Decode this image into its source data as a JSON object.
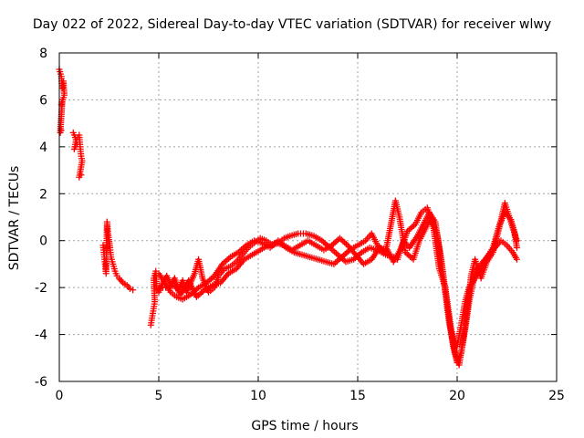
{
  "chart_data": {
    "type": "scatter",
    "title": "Day 022 of 2022, Sidereal Day-to-day VTEC variation (SDTVAR) for receiver wlwy",
    "xlabel": "GPS time / hours",
    "ylabel": "SDTVAR / TECUs",
    "xlim": [
      0,
      25
    ],
    "ylim": [
      -6,
      8
    ],
    "xticks": [
      0,
      5,
      10,
      15,
      20,
      25
    ],
    "yticks": [
      -6,
      -4,
      -2,
      0,
      2,
      4,
      6,
      8
    ],
    "grid": true,
    "marker": "+",
    "color": "#ff0000",
    "segments": [
      [
        [
          0.0,
          7.3
        ],
        [
          0.1,
          7.0
        ],
        [
          0.15,
          6.5
        ],
        [
          0.2,
          6.8
        ],
        [
          0.25,
          6.2
        ],
        [
          0.1,
          5.8
        ],
        [
          0.15,
          6.0
        ],
        [
          0.05,
          4.6
        ],
        [
          0.1,
          4.7
        ]
      ],
      [
        [
          0.7,
          4.6
        ],
        [
          0.8,
          4.4
        ],
        [
          0.9,
          4.1
        ],
        [
          0.75,
          3.9
        ],
        [
          0.85,
          4.3
        ],
        [
          1.0,
          4.5
        ],
        [
          1.05,
          4.0
        ],
        [
          1.1,
          3.6
        ],
        [
          1.15,
          3.4
        ],
        [
          1.0,
          2.7
        ],
        [
          1.1,
          2.8
        ]
      ],
      [
        [
          2.2,
          -0.2
        ],
        [
          2.25,
          -0.6
        ],
        [
          2.3,
          -1.0
        ],
        [
          2.35,
          -1.4
        ],
        [
          2.4,
          0.8
        ],
        [
          2.45,
          0.3
        ],
        [
          2.55,
          -0.3
        ],
        [
          2.6,
          -0.7
        ],
        [
          2.7,
          -1.0
        ],
        [
          2.8,
          -1.3
        ],
        [
          2.9,
          -1.5
        ],
        [
          3.0,
          -1.6
        ],
        [
          3.2,
          -1.8
        ],
        [
          3.4,
          -1.9
        ],
        [
          3.55,
          -2.05
        ],
        [
          3.7,
          -2.1
        ]
      ],
      [
        [
          4.6,
          -3.6
        ],
        [
          4.7,
          -3.1
        ],
        [
          4.8,
          -2.6
        ],
        [
          4.75,
          -1.6
        ],
        [
          4.85,
          -1.3
        ],
        [
          4.9,
          -2.0
        ],
        [
          5.0,
          -2.2
        ],
        [
          5.2,
          -1.8
        ],
        [
          5.4,
          -1.5
        ],
        [
          5.6,
          -1.9
        ],
        [
          5.8,
          -1.6
        ],
        [
          6.0,
          -2.1
        ],
        [
          6.2,
          -1.7
        ],
        [
          6.4,
          -2.2
        ],
        [
          6.6,
          -1.8
        ],
        [
          6.8,
          -1.4
        ],
        [
          7.0,
          -0.8
        ],
        [
          7.2,
          -1.6
        ],
        [
          7.5,
          -2.2
        ],
        [
          7.8,
          -2.0
        ],
        [
          8.0,
          -1.5
        ],
        [
          8.3,
          -1.2
        ],
        [
          8.6,
          -1.1
        ],
        [
          8.9,
          -0.9
        ],
        [
          9.2,
          -0.6
        ],
        [
          9.5,
          -0.3
        ],
        [
          9.8,
          -0.1
        ],
        [
          10.1,
          0.1
        ],
        [
          10.4,
          0.0
        ],
        [
          10.7,
          -0.2
        ],
        [
          11.0,
          -0.1
        ],
        [
          11.3,
          0.1
        ],
        [
          11.6,
          0.2
        ],
        [
          12.0,
          0.3
        ],
        [
          12.4,
          0.3
        ],
        [
          12.8,
          0.2
        ],
        [
          13.2,
          0.0
        ],
        [
          13.6,
          -0.3
        ],
        [
          14.0,
          -0.6
        ],
        [
          14.4,
          -0.9
        ],
        [
          14.8,
          -0.8
        ],
        [
          15.2,
          -0.5
        ],
        [
          15.6,
          -0.3
        ],
        [
          16.0,
          -0.4
        ],
        [
          16.4,
          -0.6
        ],
        [
          16.8,
          -0.7
        ],
        [
          17.0,
          -0.8
        ],
        [
          17.3,
          0.0
        ],
        [
          17.6,
          -0.3
        ],
        [
          18.0,
          0.2
        ],
        [
          18.3,
          0.7
        ],
        [
          18.6,
          1.2
        ],
        [
          18.9,
          0.8
        ],
        [
          19.2,
          -0.8
        ],
        [
          19.5,
          -2.8
        ],
        [
          19.8,
          -4.5
        ],
        [
          20.0,
          -5.2
        ],
        [
          20.2,
          -4.8
        ],
        [
          20.4,
          -3.8
        ],
        [
          20.6,
          -2.6
        ],
        [
          20.8,
          -1.8
        ],
        [
          21.0,
          -1.2
        ],
        [
          21.3,
          -0.9
        ],
        [
          21.6,
          -0.6
        ],
        [
          21.9,
          -0.3
        ],
        [
          22.2,
          0.0
        ],
        [
          22.5,
          -0.2
        ],
        [
          22.8,
          -0.5
        ],
        [
          23.0,
          -0.8
        ]
      ],
      [
        [
          5.0,
          -1.4
        ],
        [
          5.3,
          -1.8
        ],
        [
          5.6,
          -2.2
        ],
        [
          5.9,
          -2.4
        ],
        [
          6.2,
          -2.5
        ],
        [
          6.6,
          -2.3
        ],
        [
          7.0,
          -2.0
        ],
        [
          7.4,
          -1.8
        ],
        [
          7.8,
          -1.5
        ],
        [
          8.2,
          -1.0
        ],
        [
          8.6,
          -0.7
        ],
        [
          9.0,
          -0.5
        ],
        [
          9.4,
          -0.2
        ],
        [
          9.8,
          0.0
        ],
        [
          10.2,
          -0.1
        ],
        [
          10.6,
          -0.3
        ],
        [
          11.0,
          0.0
        ],
        [
          11.4,
          -0.3
        ],
        [
          11.8,
          -0.5
        ],
        [
          12.2,
          -0.6
        ],
        [
          12.6,
          -0.7
        ],
        [
          13.0,
          -0.8
        ],
        [
          13.4,
          -0.9
        ],
        [
          13.8,
          -1.0
        ],
        [
          14.2,
          -0.7
        ],
        [
          14.6,
          -0.4
        ],
        [
          15.0,
          -0.2
        ],
        [
          15.4,
          0.0
        ],
        [
          15.7,
          0.3
        ],
        [
          16.0,
          -0.2
        ],
        [
          16.4,
          -0.5
        ],
        [
          16.9,
          1.7
        ],
        [
          17.1,
          1.0
        ],
        [
          17.4,
          -0.5
        ],
        [
          17.8,
          -0.8
        ],
        [
          18.1,
          0.0
        ],
        [
          18.4,
          0.5
        ],
        [
          18.7,
          1.0
        ],
        [
          19.0,
          0.2
        ],
        [
          19.3,
          -1.5
        ],
        [
          19.6,
          -3.5
        ],
        [
          19.9,
          -4.8
        ],
        [
          20.1,
          -5.3
        ],
        [
          20.3,
          -4.2
        ],
        [
          20.5,
          -3.0
        ],
        [
          20.7,
          -1.5
        ],
        [
          20.9,
          -0.8
        ],
        [
          21.2,
          -1.6
        ],
        [
          21.5,
          -0.9
        ],
        [
          21.8,
          -0.5
        ],
        [
          22.1,
          0.5
        ],
        [
          22.4,
          1.6
        ],
        [
          22.7,
          0.8
        ],
        [
          23.0,
          0.0
        ]
      ],
      [
        [
          5.2,
          -2.0
        ],
        [
          5.5,
          -2.0
        ],
        [
          5.8,
          -1.9
        ],
        [
          6.1,
          -2.3
        ],
        [
          6.5,
          -1.7
        ],
        [
          6.9,
          -2.4
        ],
        [
          7.3,
          -2.1
        ],
        [
          7.7,
          -1.9
        ],
        [
          8.1,
          -1.8
        ],
        [
          8.5,
          -1.4
        ],
        [
          8.9,
          -1.2
        ],
        [
          9.3,
          -0.8
        ],
        [
          9.7,
          -0.6
        ],
        [
          10.1,
          -0.4
        ],
        [
          10.5,
          -0.2
        ],
        [
          10.9,
          -0.1
        ],
        [
          11.3,
          -0.2
        ],
        [
          11.7,
          -0.4
        ],
        [
          12.1,
          -0.2
        ],
        [
          12.5,
          0.0
        ],
        [
          12.9,
          -0.2
        ],
        [
          13.3,
          -0.4
        ],
        [
          13.7,
          -0.2
        ],
        [
          14.1,
          0.1
        ],
        [
          14.5,
          -0.2
        ],
        [
          14.9,
          -0.6
        ],
        [
          15.3,
          -1.0
        ],
        [
          15.7,
          -0.8
        ],
        [
          16.1,
          -0.3
        ],
        [
          16.5,
          -0.4
        ],
        [
          16.8,
          -0.9
        ],
        [
          17.2,
          -0.3
        ],
        [
          17.5,
          0.4
        ],
        [
          17.9,
          0.7
        ],
        [
          18.2,
          1.2
        ],
        [
          18.5,
          1.4
        ],
        [
          18.8,
          0.6
        ],
        [
          19.1,
          -1.2
        ],
        [
          19.4,
          -2.0
        ],
        [
          19.7,
          -3.8
        ],
        [
          20.0,
          -4.5
        ],
        [
          20.2,
          -3.6
        ],
        [
          20.4,
          -2.6
        ],
        [
          20.6,
          -2.0
        ],
        [
          20.9,
          -1.6
        ],
        [
          21.2,
          -1.2
        ],
        [
          21.5,
          -0.7
        ],
        [
          21.8,
          -0.3
        ],
        [
          22.1,
          0.6
        ],
        [
          22.4,
          1.2
        ],
        [
          22.7,
          0.9
        ],
        [
          22.9,
          0.3
        ],
        [
          23.0,
          -0.3
        ]
      ]
    ]
  }
}
